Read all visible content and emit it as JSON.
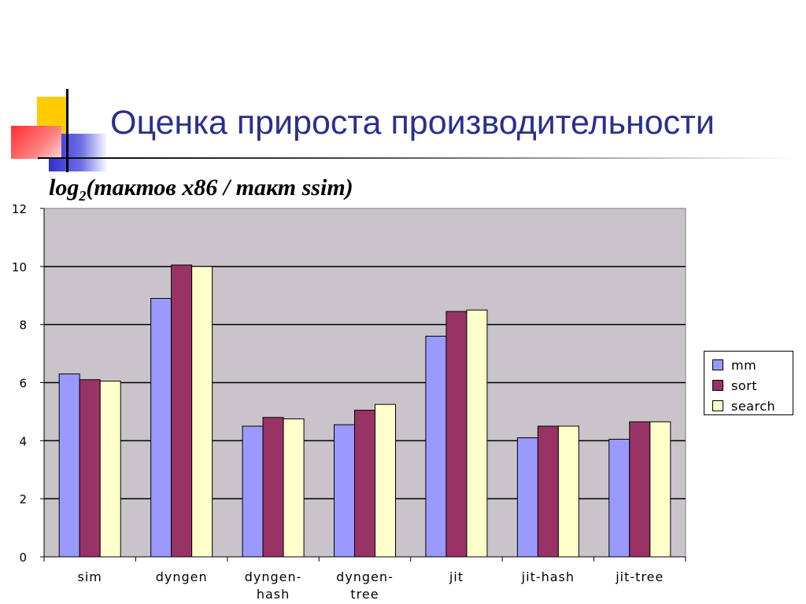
{
  "slide": {
    "title": "Оценка прироста производительности",
    "subtitle_prefix": "log",
    "subtitle_sub": "2",
    "subtitle_rest": "(тактов x86 / такт ssim)"
  },
  "colors": {
    "title": "#2a2f8f",
    "plot_bg": "#c8c4c9",
    "mm": "#9999ff",
    "sort": "#993366",
    "search": "#ffffcc"
  },
  "chart_data": {
    "type": "bar",
    "title": "",
    "xlabel": "",
    "ylabel": "",
    "ylim": [
      0,
      12
    ],
    "yticks": [
      "0",
      "2",
      "4",
      "6",
      "8",
      "10",
      "12"
    ],
    "grid": true,
    "legend_position": "right",
    "categories": [
      "sim",
      "dyngen",
      "dyngen-hash",
      "dyngen-tree",
      "jit",
      "jit-hash",
      "jit-tree"
    ],
    "category_lines": [
      [
        "sim"
      ],
      [
        "dyngen"
      ],
      [
        "dyngen-",
        "hash"
      ],
      [
        "dyngen-",
        "tree"
      ],
      [
        "jit"
      ],
      [
        "jit-hash"
      ],
      [
        "jit-tree"
      ]
    ],
    "series": [
      {
        "name": "mm",
        "values": [
          6.3,
          8.9,
          4.5,
          4.55,
          7.6,
          4.1,
          4.05
        ]
      },
      {
        "name": "sort",
        "values": [
          6.1,
          10.05,
          4.8,
          5.05,
          8.45,
          4.5,
          4.65
        ]
      },
      {
        "name": "search",
        "values": [
          6.05,
          10.0,
          4.75,
          5.25,
          8.5,
          4.5,
          4.65
        ]
      }
    ]
  }
}
